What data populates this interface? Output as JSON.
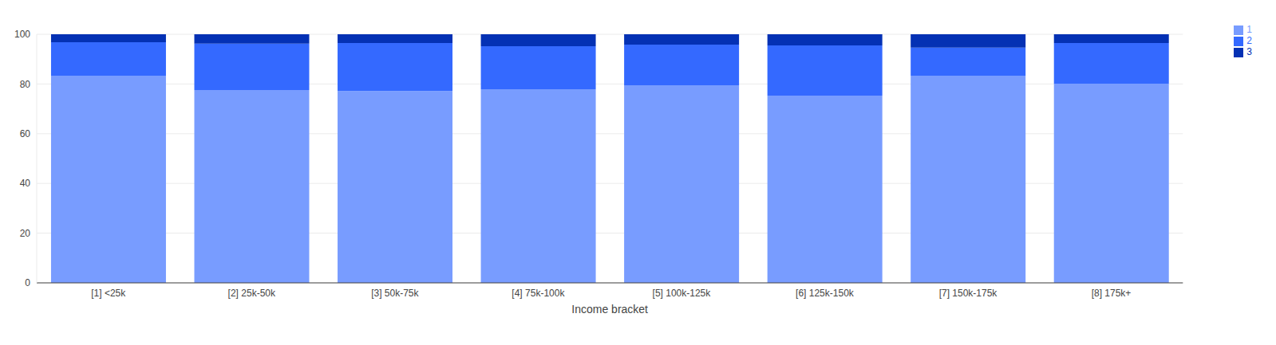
{
  "chart_data": {
    "type": "bar",
    "stacked": true,
    "x_label": "Income bracket",
    "categories": [
      "[1] <25k",
      "[2] 25k-50k",
      "[3] 50k-75k",
      "[4] 75k-100k",
      "[5] 100k-125k",
      "[6] 125k-150k",
      "[7] 150k-175k",
      "[8] 175k+"
    ],
    "series": [
      {
        "name": "1",
        "color": "#789cff",
        "values": [
          83.3,
          77.6,
          77.2,
          77.9,
          79.5,
          75.3,
          83.3,
          80.1
        ]
      },
      {
        "name": "2",
        "color": "#3469ff",
        "values": [
          13.5,
          18.6,
          19.3,
          17.3,
          16.3,
          20.2,
          11.3,
          16.4
        ]
      },
      {
        "name": "3",
        "color": "#0431b4",
        "values": [
          3.2,
          3.8,
          3.5,
          4.8,
          4.2,
          4.5,
          5.4,
          3.5
        ]
      }
    ],
    "ylim": [
      0,
      100
    ],
    "yticks": [
      0,
      20,
      40,
      60,
      80,
      100
    ],
    "grid": true,
    "legend": "top-right"
  }
}
